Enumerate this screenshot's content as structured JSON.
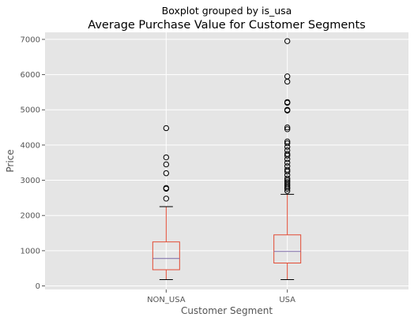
{
  "colors": {
    "plot_background": "#e5e5e5",
    "grid": "#ffffff",
    "box": "#e24a33",
    "median": "#7a68a6",
    "whisker": "#e24a33",
    "cap": "#000000",
    "flier": "#000000",
    "tick_text": "#555555"
  },
  "chart_data": {
    "type": "box",
    "suptitle": "Boxplot grouped by is_usa",
    "title": "Average Purchase Value for Customer Segments",
    "xlabel": "Customer Segment",
    "ylabel": "Price",
    "ylim": [
      -100,
      7200
    ],
    "yticks": [
      0,
      1000,
      2000,
      3000,
      4000,
      5000,
      6000,
      7000
    ],
    "grid": true,
    "categories": [
      "NON_USA",
      "USA"
    ],
    "boxes": [
      {
        "category": "NON_USA",
        "whisker_low": 180,
        "q1": 460,
        "median": 780,
        "q3": 1250,
        "whisker_high": 2250,
        "outliers": [
          2480,
          2760,
          2780,
          3200,
          3450,
          3650,
          4480
        ]
      },
      {
        "category": "USA",
        "whisker_low": 180,
        "q1": 650,
        "median": 980,
        "q3": 1450,
        "whisker_high": 2600,
        "outliers": [
          2700,
          2760,
          2800,
          2850,
          2900,
          2950,
          3000,
          3050,
          3150,
          3250,
          3300,
          3400,
          3500,
          3600,
          3700,
          3750,
          3850,
          3950,
          4050,
          4100,
          4450,
          4500,
          4980,
          5000,
          5200,
          5220,
          5800,
          5950,
          6950
        ]
      }
    ]
  }
}
